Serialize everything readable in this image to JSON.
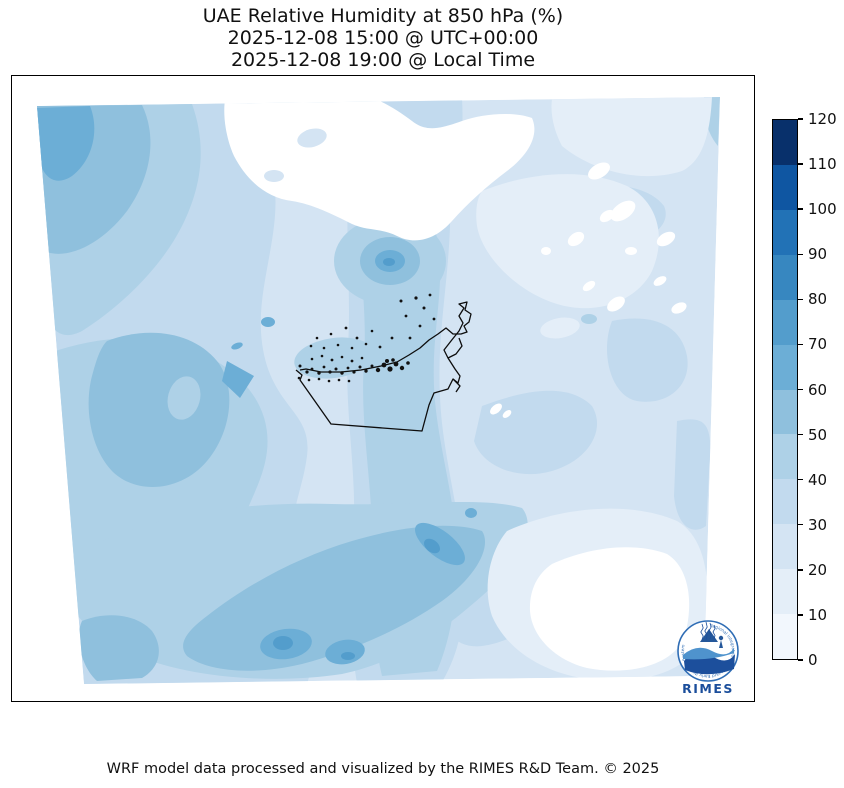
{
  "figure": {
    "title_lines": [
      "UAE Relative Humidity at 850 hPa (%)",
      "2025-12-08 15:00 @ UTC+00:00",
      "2025-12-08 19:00 @ Local Time"
    ],
    "footer": "WRF model data processed and visualized by the RIMES R&D Team. © 2025",
    "background_color": "#ffffff"
  },
  "colorbar": {
    "orientation": "vertical",
    "min": 0,
    "max": 120,
    "bin_size": 10,
    "ticks": [
      "0",
      "10",
      "20",
      "30",
      "40",
      "50",
      "60",
      "70",
      "80",
      "90",
      "100",
      "110",
      "120"
    ],
    "bin_colors_low_to_high": [
      "#f2f7fd",
      "#e4eef8",
      "#d4e4f3",
      "#c2daee",
      "#aed1e7",
      "#8fc0dd",
      "#6caed6",
      "#539dcc",
      "#3787c0",
      "#2272b6",
      "#0f56a2",
      "#08306b"
    ],
    "outline_color": "#000000"
  },
  "logo": {
    "org_name": "RIMES",
    "ring_text": "Regional Integrated Multi-Hazard Early Warning System",
    "name_color": "#1b4e9b",
    "ring_color": "#2f6db5"
  },
  "chart_data": {
    "type": "heatmap",
    "title": "UAE Relative Humidity at 850 hPa (%)",
    "valid_time_utc": "2025-12-08 15:00 @ UTC+00:00",
    "valid_time_local": "2025-12-08 19:00 @ Local Time",
    "variable": "Relative Humidity",
    "level_hpa": 850,
    "units": "%",
    "model": "WRF",
    "colormap": "Blues, 12 discrete bins of 10",
    "levels": [
      0,
      10,
      20,
      30,
      40,
      50,
      60,
      70,
      80,
      90,
      100,
      110,
      120
    ],
    "displayed_value_range": [
      0,
      80
    ],
    "domain_shape": "slanted WRF domain (trapezoid) over UAE and surrounding Gulf region",
    "features": [
      {
        "name": "northwest-corner-maximum",
        "approx_value": 65,
        "range": "50-70",
        "position": "top-left corner of domain"
      },
      {
        "name": "bullseye-north-of-uae",
        "approx_value": 65,
        "range": "45-70",
        "position": "upper middle, concentric rings"
      },
      {
        "name": "west-desert-moist-band",
        "approx_value": 50,
        "range": "40-60",
        "position": "left third, mid height, broad area"
      },
      {
        "name": "central-vertical-band",
        "approx_value": 45,
        "range": "40-50",
        "position": "narrow band through map center, crossing UAE"
      },
      {
        "name": "south-central-moist-band",
        "approx_value": 60,
        "range": "50-70",
        "position": "bottom center, diagonal SW-NE band"
      },
      {
        "name": "south-central-peaks",
        "approx_value": 75,
        "range": "70-80",
        "position": "small cores inside southern band"
      },
      {
        "name": "dry-terrain-white-areas",
        "approx_value": 5,
        "range": "0-10 (near white)",
        "position": "top center and top right, jagged island shapes"
      },
      {
        "name": "southeast-dry-minimum",
        "approx_value": 8,
        "range": "0-20",
        "position": "bottom right corner"
      },
      {
        "name": "uae-coastal-area",
        "approx_value": 28,
        "range": "20-40",
        "position": "center of map around UAE outline"
      }
    ],
    "overlays": {
      "uae_boundary": "black country outline with Musandam peninsula detail",
      "island_markers": "dense small black dots along UAE Gulf coastline",
      "logo": "RIMES circular logo at bottom-right inside axes"
    },
    "legend_position": "right vertical colorbar",
    "grid": false
  }
}
